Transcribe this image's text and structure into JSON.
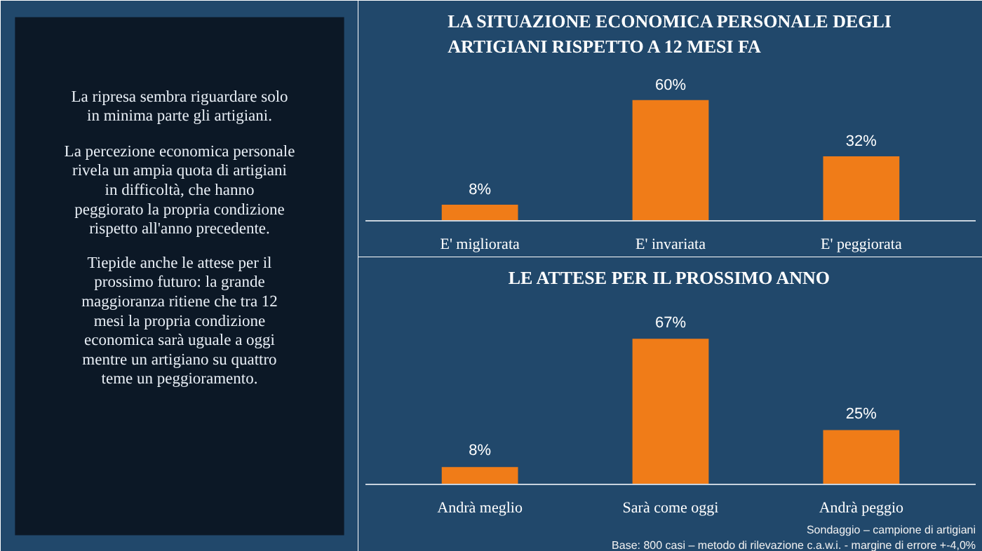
{
  "chart_data": [
    {
      "type": "other",
      "annotations": [
        "La ripresa sembra riguardare solo in minima parte gli artigiani.",
        "La percezione economica personale rivela un ampia quota di artigiani in difficoltà, che hanno peggiorato la propria condizione rispetto all'anno precedente.",
        "Tiepide anche le attese per il prossimo futuro: la grande maggioranza ritiene che tra 12 mesi la propria condizione economica sarà uguale a oggi mentre un artigiano su quattro teme un peggioramento."
      ]
    },
    {
      "type": "bar",
      "title": "LA SITUAZIONE ECONOMICA PERSONALE DEGLI ARTIGIANI RISPETTO A 12 MESI FA",
      "categories": [
        "E' migliorata",
        "E' invariata",
        "E' peggiorata"
      ],
      "values": [
        8,
        60,
        32
      ],
      "value_labels": [
        "8%",
        "60%",
        "32%"
      ],
      "color": "#f07c18",
      "grid": false
    },
    {
      "type": "bar",
      "title": "LE ATTESE PER IL PROSSIMO ANNO",
      "categories": [
        "Andrà meglio",
        "Sarà come oggi",
        "Andrà peggio"
      ],
      "values": [
        8,
        67,
        25
      ],
      "value_labels": [
        "8%",
        "67%",
        "25%"
      ],
      "color": "#f07c18",
      "grid": false,
      "annotations": [
        "Sondaggio – campione di artigiani",
        "Base: 800 casi – metodo di rilevazione c.a.w.i. - margine di errore +-4,0%"
      ]
    }
  ]
}
